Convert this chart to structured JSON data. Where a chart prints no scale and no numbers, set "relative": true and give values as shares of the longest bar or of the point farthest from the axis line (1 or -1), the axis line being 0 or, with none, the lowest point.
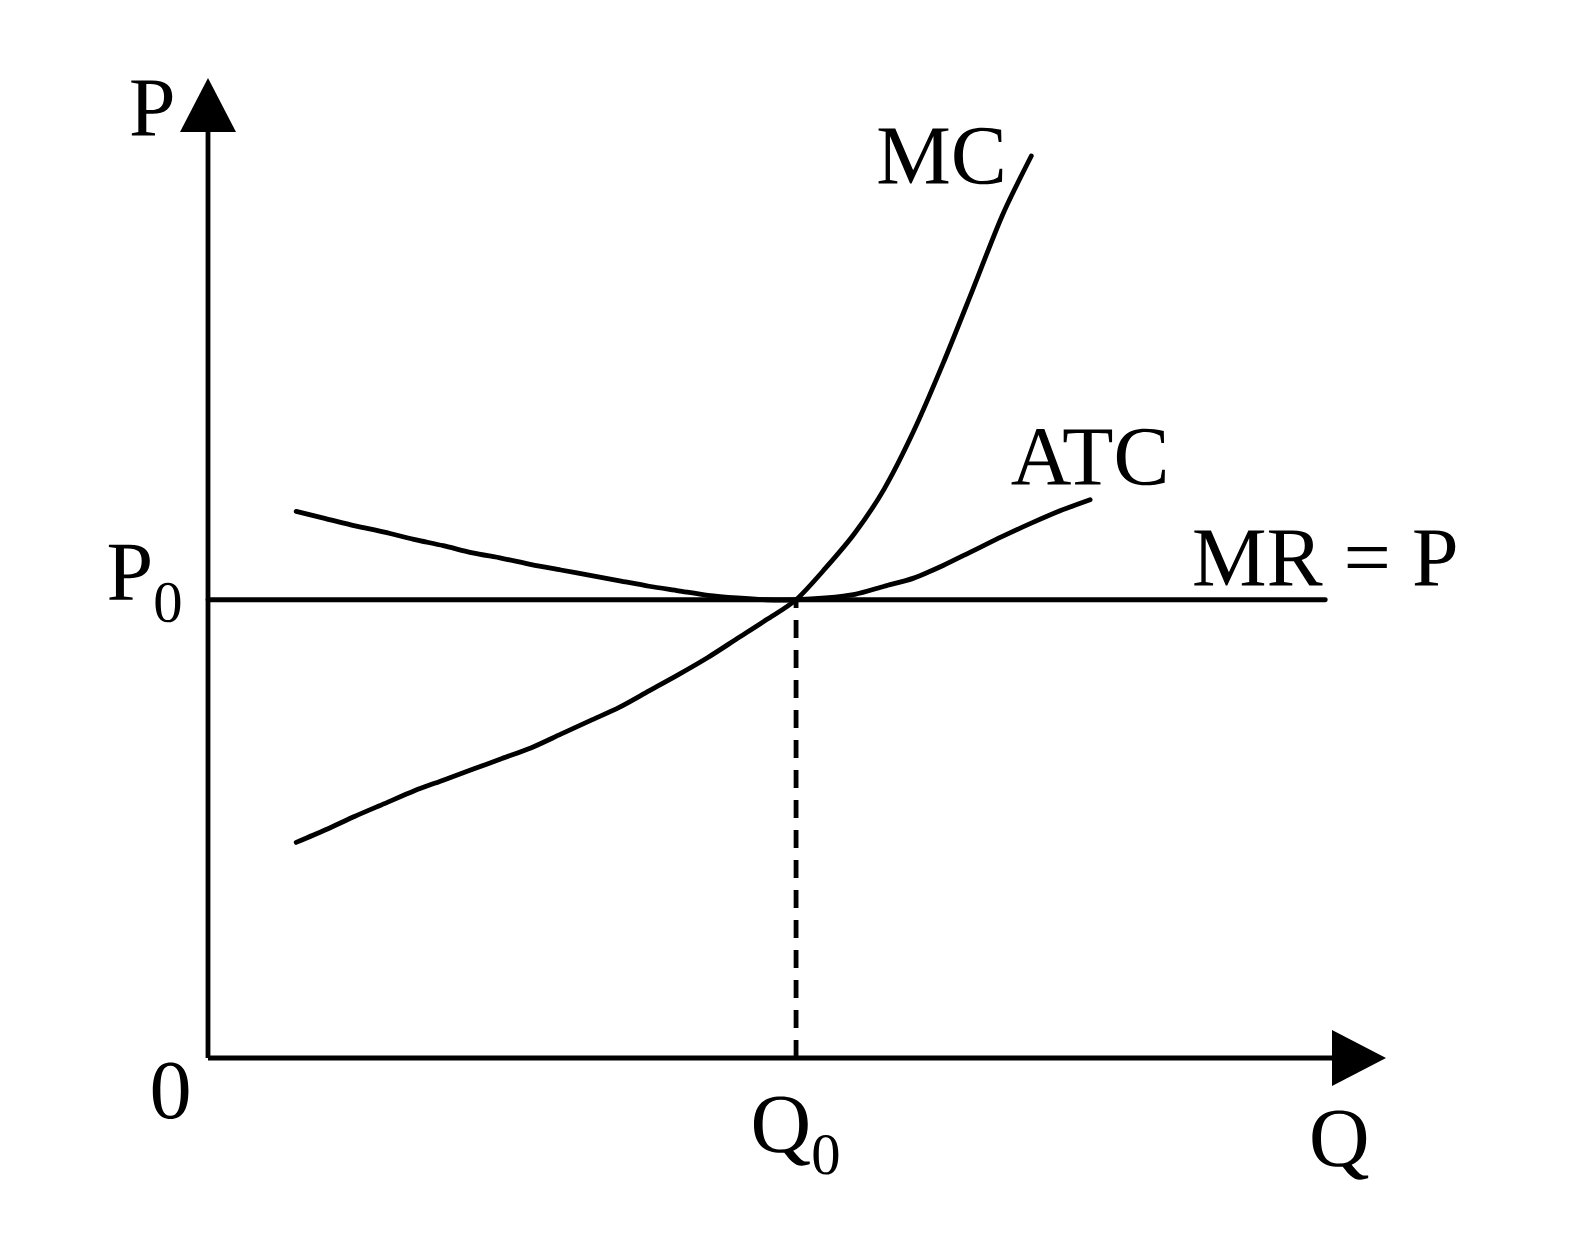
{
  "chart_data": {
    "type": "line",
    "xlabel": "Q",
    "ylabel": "P",
    "relative": true,
    "line_style": "solid",
    "categories": [
      null,
      null,
      null,
      null,
      null,
      null,
      null,
      null,
      null,
      null,
      null,
      null,
      null,
      null,
      null,
      null,
      null,
      null,
      null,
      null,
      null,
      null,
      null,
      null,
      null,
      null,
      null,
      null,
      null,
      null,
      null,
      null,
      null,
      null,
      null,
      null,
      null,
      null,
      null
    ],
    "annotations": [
      "0",
      "P$_{0}$",
      "Q$_{0}$"
    ],
    "series": [
      {
        "name": "MC",
        "color": "#000000",
        "values": [
          null,
          null,
          null,
          0.239,
          0.253,
          0.268,
          0.282,
          0.296,
          0.308,
          0.32,
          0.332,
          0.344,
          0.359,
          0.374,
          0.389,
          0.407,
          0.425,
          0.444,
          0.465,
          0.486,
          0.508,
          0.543,
          0.582,
          0.631,
          0.695,
          0.77,
          0.851,
          0.933,
          1,
          null,
          null,
          null,
          null,
          null,
          null,
          null,
          null,
          null,
          null
        ]
      },
      {
        "name": "ATC",
        "color": "#000000",
        "values": [
          null,
          null,
          null,
          0.606,
          0.598,
          0.59,
          0.583,
          0.575,
          0.568,
          0.56,
          0.554,
          0.547,
          0.541,
          0.535,
          0.529,
          0.523,
          0.518,
          0.513,
          0.51,
          0.508,
          0.508,
          0.51,
          0.514,
          0.523,
          0.532,
          0.546,
          0.562,
          0.578,
          0.593,
          0.607,
          0.619,
          null,
          null,
          null,
          null,
          null,
          null,
          null,
          null
        ]
      },
      {
        "name": "MR = P",
        "color": "#000000",
        "values": [
          0.508,
          0.508,
          0.508,
          0.508,
          0.508,
          0.508,
          0.508,
          0.508,
          0.508,
          0.508,
          0.508,
          0.508,
          0.508,
          0.508,
          0.508,
          0.508,
          0.508,
          0.508,
          0.508,
          0.508,
          0.508,
          0.508,
          0.508,
          0.508,
          0.508,
          0.508,
          0.508,
          0.508,
          0.508,
          0.508,
          0.508,
          0.508,
          0.508,
          0.508,
          0.508,
          0.508,
          0.508,
          0.508,
          0.508
        ]
      }
    ]
  }
}
